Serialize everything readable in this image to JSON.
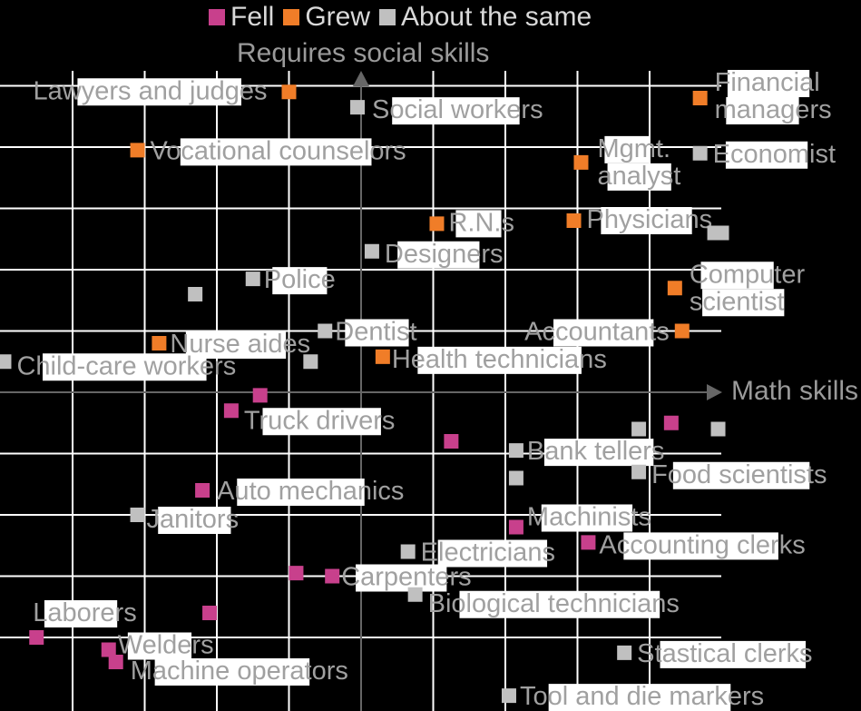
{
  "legend": {
    "fell": "Fell",
    "grew": "Grew",
    "same": "About the same"
  },
  "colors": {
    "fell": "#c8408c",
    "grew": "#f07d28",
    "same": "#c0c0c0",
    "background": "#000000",
    "grid": "#ffffff",
    "axis": "#666666",
    "label_text": "#a0a0a0",
    "label_box": "#ffffff"
  },
  "chart_data": {
    "type": "scatter",
    "xlabel": "Math skills",
    "ylabel": "Requires social skills",
    "xlim": [
      -5,
      5
    ],
    "ylim": [
      -5.2,
      5.3
    ],
    "grid": true,
    "legend_position": "top",
    "series": [
      {
        "name": "Fell",
        "points": [
          {
            "label": "",
            "x": -1.4,
            "y": -0.05
          },
          {
            "label": "Truck drivers",
            "x": -1.8,
            "y": -0.3
          },
          {
            "label": "",
            "x": 1.25,
            "y": -0.8
          },
          {
            "label": "",
            "x": 4.3,
            "y": -0.5
          },
          {
            "label": "Auto mechanics",
            "x": -2.2,
            "y": -1.6
          },
          {
            "label": "Machinists",
            "x": 2.15,
            "y": -2.2
          },
          {
            "label": "Accounting clerks",
            "x": 3.15,
            "y": -2.45
          },
          {
            "label": "",
            "x": -0.9,
            "y": -2.95
          },
          {
            "label": "Carpenters",
            "x": -0.4,
            "y": -3.0
          },
          {
            "label": "",
            "x": -2.1,
            "y": -3.6
          },
          {
            "label": "Laborers",
            "x": -4.5,
            "y": -4.0
          },
          {
            "label": "Welders",
            "x": -3.5,
            "y": -4.2
          },
          {
            "label": "Machine operators",
            "x": -3.4,
            "y": -4.4
          }
        ]
      },
      {
        "name": "Grew",
        "points": [
          {
            "label": "Lawyers and judges",
            "x": -1.0,
            "y": 4.9
          },
          {
            "label": "Vocational counselors",
            "x": -3.1,
            "y": 3.95
          },
          {
            "label": "Financial managers",
            "x": 4.7,
            "y": 4.8
          },
          {
            "label": "Mgmt. analyst",
            "x": 3.05,
            "y": 3.75
          },
          {
            "label": "R.N.s",
            "x": 1.05,
            "y": 2.75
          },
          {
            "label": "Physicians",
            "x": 2.95,
            "y": 2.8
          },
          {
            "label": "Computer scientist",
            "x": 4.35,
            "y": 1.7
          },
          {
            "label": "Nurse aides",
            "x": -2.8,
            "y": 0.8
          },
          {
            "label": "Accountants",
            "x": 4.45,
            "y": 1.0
          },
          {
            "label": "Health technicians",
            "x": 0.3,
            "y": 0.58
          }
        ]
      },
      {
        "name": "About the same",
        "points": [
          {
            "label": "Social workers",
            "x": -0.05,
            "y": 4.65
          },
          {
            "label": "Economist",
            "x": 4.7,
            "y": 3.9
          },
          {
            "label": "",
            "x": 4.9,
            "y": 2.6
          },
          {
            "label": "",
            "x": 5.0,
            "y": 2.6
          },
          {
            "label": "Designers",
            "x": 0.15,
            "y": 2.3
          },
          {
            "label": "Police",
            "x": -1.5,
            "y": 1.85
          },
          {
            "label": "",
            "x": -2.3,
            "y": 1.6
          },
          {
            "label": "Dentist",
            "x": -0.5,
            "y": 1.0
          },
          {
            "label": "",
            "x": -0.7,
            "y": 0.5
          },
          {
            "label": "Child-care workers",
            "x": -4.95,
            "y": 0.5
          },
          {
            "label": "",
            "x": 3.85,
            "y": -0.6
          },
          {
            "label": "",
            "x": 4.95,
            "y": -0.6
          },
          {
            "label": "Bank tellers",
            "x": 2.15,
            "y": -0.95
          },
          {
            "label": "",
            "x": 2.15,
            "y": -1.4
          },
          {
            "label": "Food scientists",
            "x": 3.85,
            "y": -1.3
          },
          {
            "label": "Janitors",
            "x": -3.1,
            "y": -2.0
          },
          {
            "label": "Electricians",
            "x": 0.65,
            "y": -2.6
          },
          {
            "label": "Biological technicians",
            "x": 0.75,
            "y": -3.3
          },
          {
            "label": "Stastical clerks",
            "x": 3.65,
            "y": -4.25
          },
          {
            "label": "Tool and die markers",
            "x": 2.05,
            "y": -4.95
          }
        ]
      }
    ]
  }
}
